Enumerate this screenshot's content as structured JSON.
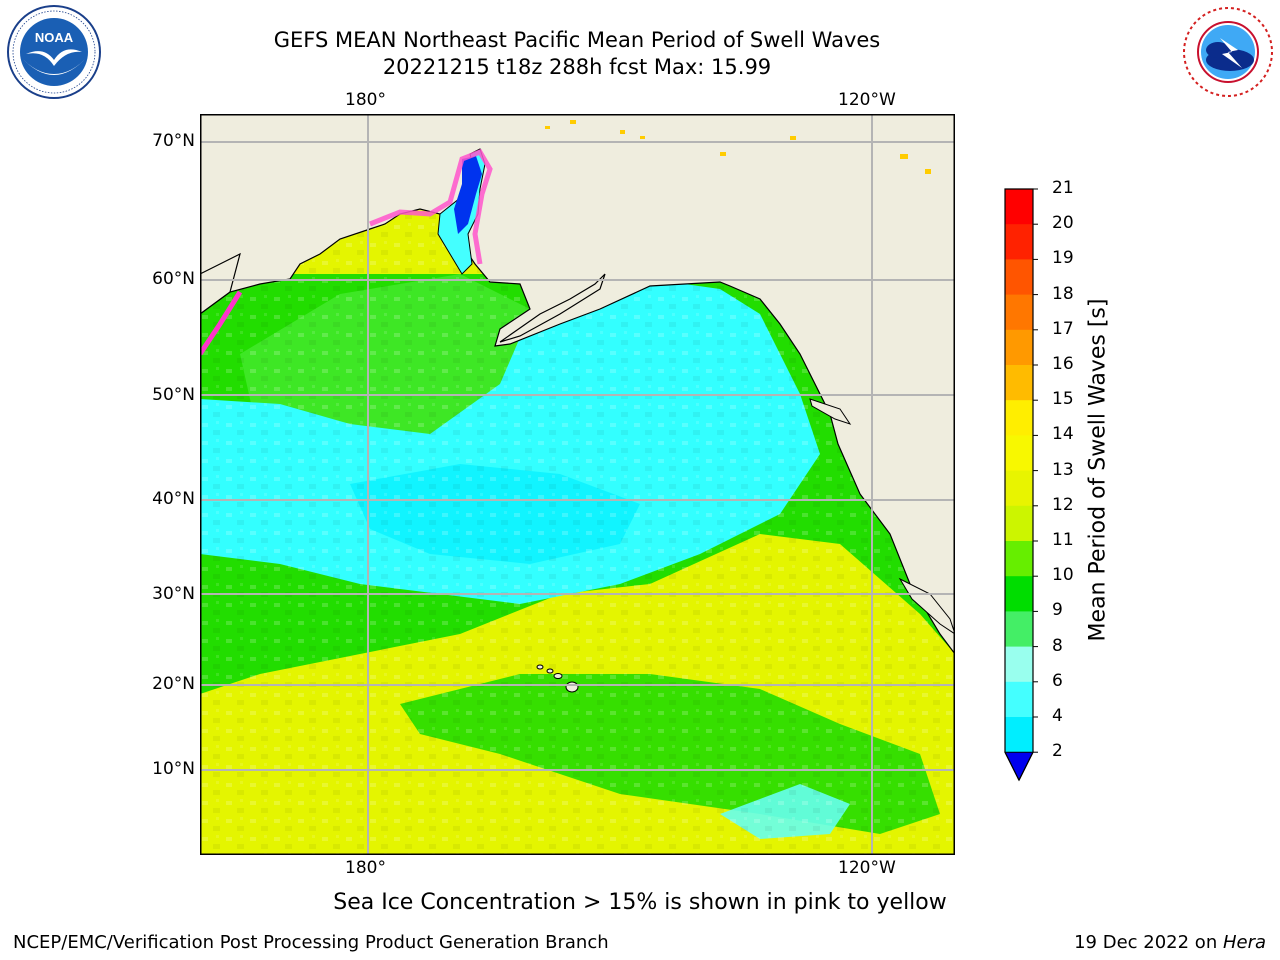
{
  "header": {
    "title_line1": "GEFS MEAN Northeast Pacific Mean Period of Swell Waves",
    "title_line2": "20221215 t18z 288h fcst   Max: 15.99"
  },
  "logos": {
    "left": "noaa-logo",
    "right": "national-weather-service-logo"
  },
  "map": {
    "lon_labels": [
      "180°",
      "120°W"
    ],
    "lat_labels": [
      "70°N",
      "60°N",
      "50°N",
      "40°N",
      "30°N",
      "20°N",
      "10°N"
    ],
    "colors": {
      "land": "#efedde",
      "grid": "#b4b4b4"
    }
  },
  "colorbar": {
    "title": "Mean Period of Swell Waves [s]",
    "ticks": [
      "21",
      "20",
      "19",
      "18",
      "17",
      "16",
      "15",
      "14",
      "13",
      "12",
      "11",
      "10",
      "9",
      "8",
      "6",
      "4",
      "2"
    ],
    "colors": [
      "#ff0000",
      "#ff2200",
      "#ff5500",
      "#ff7700",
      "#ff9900",
      "#ffbb00",
      "#ffee00",
      "#f8f800",
      "#e8f400",
      "#ccf500",
      "#66ee00",
      "#00dd00",
      "#44ee66",
      "#99ffee",
      "#44ffff",
      "#00eeff",
      "#0077ff"
    ],
    "under_color": "#0000ee"
  },
  "note": "Sea Ice Concentration > 15% is shown in pink to yellow",
  "footer": {
    "left": "NCEP/EMC/Verification Post Processing Product Generation Branch",
    "right_date": "19 Dec 2022 on ",
    "right_host": "Hera"
  }
}
